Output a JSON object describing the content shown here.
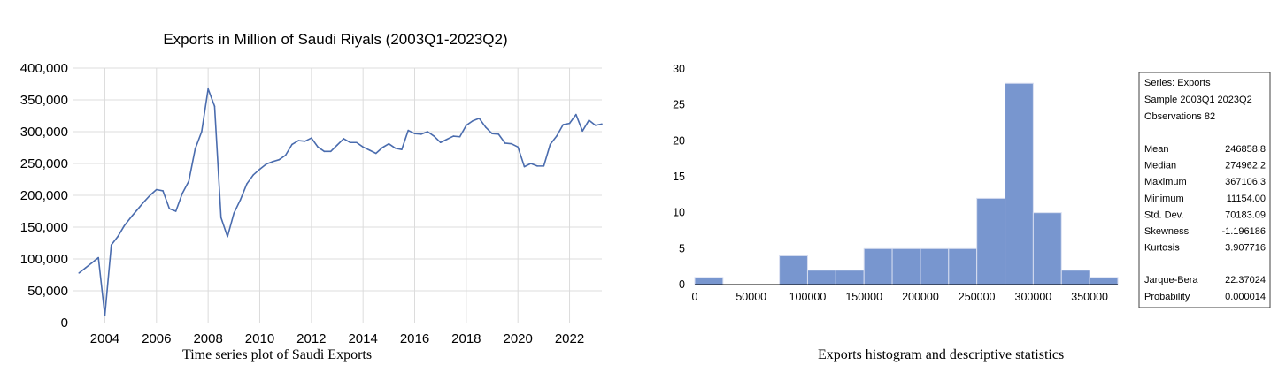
{
  "chart_data": [
    {
      "type": "line",
      "title": "Exports in Million of Saudi Riyals (2003Q1-2023Q2)",
      "caption": "Time series plot of Saudi Exports",
      "x_start": 2003.0,
      "x_step": 0.25,
      "xlim": [
        2002.75,
        2023.25
      ],
      "x_ticks": [
        2004,
        2006,
        2008,
        2010,
        2012,
        2014,
        2016,
        2018,
        2020,
        2022
      ],
      "y_ticks": [
        0,
        50000,
        100000,
        150000,
        200000,
        250000,
        300000,
        350000,
        400000
      ],
      "y_tick_labels": [
        "0",
        "50,000",
        "100,000",
        "150,000",
        "200,000",
        "250,000",
        "300,000",
        "350,000",
        "400,000"
      ],
      "ylim": [
        0,
        400000
      ],
      "grid": true,
      "color": "#4a6cae",
      "series": [
        {
          "values": [
            78000,
            86000,
            94000,
            102000,
            11154,
            122000,
            135000,
            152000,
            165000,
            177000,
            189000,
            200000,
            209000,
            207000,
            179000,
            175000,
            203000,
            222000,
            273000,
            300000,
            367106,
            340000,
            165000,
            135000,
            172000,
            193000,
            218000,
            232000,
            241000,
            249000,
            253000,
            256000,
            263000,
            280000,
            286000,
            285000,
            290000,
            276000,
            269000,
            269000,
            279000,
            289000,
            283000,
            283000,
            276000,
            271000,
            266000,
            275000,
            281000,
            274000,
            272000,
            302000,
            297000,
            296000,
            300000,
            293000,
            283000,
            288000,
            293000,
            292000,
            310000,
            317000,
            321000,
            307000,
            297000,
            296000,
            282000,
            281000,
            276000,
            245000,
            250000,
            246000,
            246000,
            280000,
            293000,
            311000,
            313000,
            327000,
            301000,
            318000,
            310000,
            312000
          ]
        }
      ]
    },
    {
      "type": "bar",
      "title": "",
      "caption": "Exports histogram and descriptive statistics",
      "bin_width": 25000,
      "bin_start": 0,
      "values": [
        1,
        0,
        0,
        4,
        2,
        2,
        5,
        5,
        5,
        5,
        12,
        28,
        10,
        2,
        1
      ],
      "xlim": [
        0,
        375000
      ],
      "x_ticks": [
        0,
        50000,
        100000,
        150000,
        200000,
        250000,
        300000,
        350000
      ],
      "x_tick_labels": [
        "0",
        "50000",
        "100000",
        "150000",
        "200000",
        "250000",
        "300000",
        "350000"
      ],
      "y_ticks": [
        0,
        5,
        10,
        15,
        20,
        25,
        30
      ],
      "y_tick_labels": [
        "0",
        "5",
        "10",
        "15",
        "20",
        "25",
        "30"
      ],
      "ylim": [
        0,
        30
      ],
      "color": "#7896cf",
      "stats_header": [
        "Series: Exports",
        "Sample 2003Q1 2023Q2",
        "Observations 82"
      ],
      "stats": [
        {
          "label": "Mean",
          "value": "246858.8"
        },
        {
          "label": "Median",
          "value": "274962.2"
        },
        {
          "label": "Maximum",
          "value": "367106.3"
        },
        {
          "label": "Minimum",
          "value": "11154.00"
        },
        {
          "label": "Std. Dev.",
          "value": "70183.09"
        },
        {
          "label": "Skewness",
          "value": "-1.196186"
        },
        {
          "label": "Kurtosis",
          "value": "3.907716"
        }
      ],
      "stats_tests": [
        {
          "label": "Jarque-Bera",
          "value": "22.37024"
        },
        {
          "label": "Probability",
          "value": "0.000014"
        }
      ]
    }
  ]
}
